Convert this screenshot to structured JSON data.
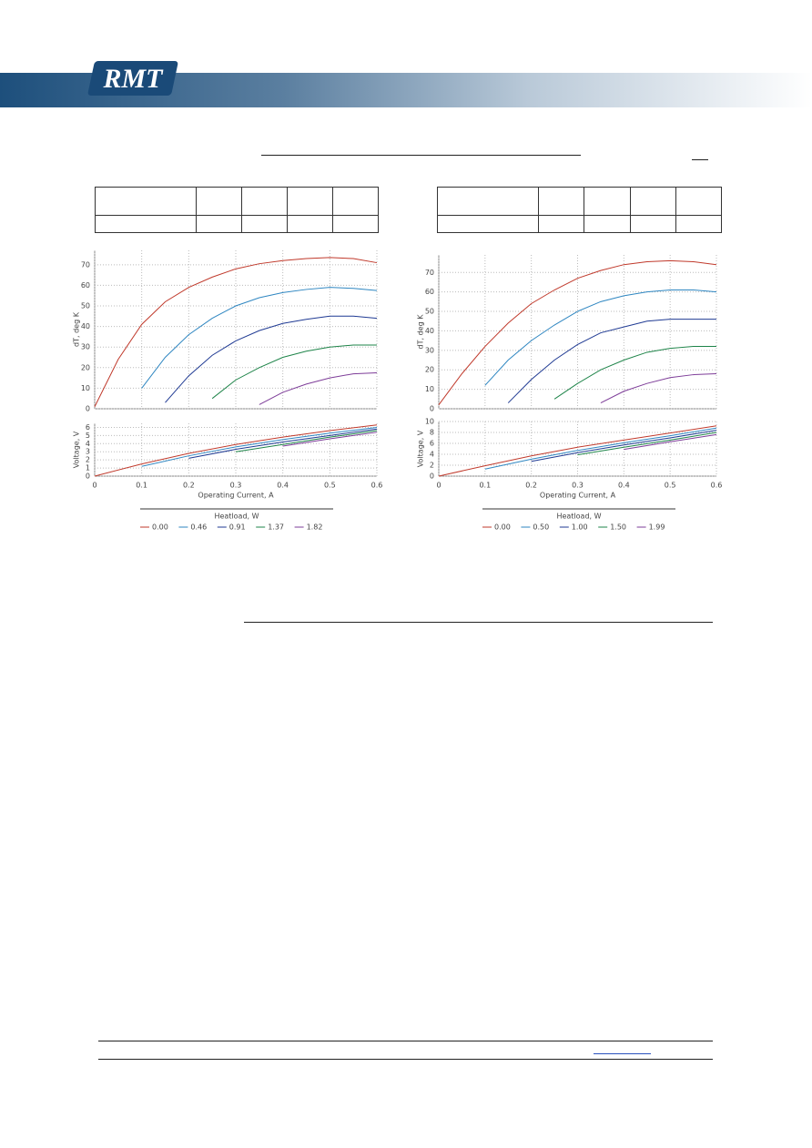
{
  "header": {
    "logo": "RMT"
  },
  "chart_data": [
    {
      "type": "line",
      "ylabel": "dT, deg K",
      "x": [
        0,
        0.05,
        0.1,
        0.15,
        0.2,
        0.25,
        0.3,
        0.35,
        0.4,
        0.45,
        0.5,
        0.55,
        0.6
      ],
      "xlim": [
        0,
        0.6
      ],
      "xticks": [
        0,
        0.1,
        0.2,
        0.3,
        0.4,
        0.5,
        0.6
      ],
      "ylim": [
        0,
        77
      ],
      "yticks": [
        0,
        10,
        20,
        30,
        40,
        50,
        60,
        70
      ],
      "grid": true,
      "series": [
        {
          "color": "#c0392b",
          "values": [
            1,
            24,
            41,
            52,
            59,
            64,
            68,
            70.5,
            72,
            73,
            73.5,
            73,
            71
          ]
        },
        {
          "color": "#2e86c1",
          "values": [
            null,
            null,
            10,
            25,
            36,
            44,
            50,
            54,
            56.5,
            58,
            59,
            58.5,
            57.5
          ]
        },
        {
          "color": "#1f3a93",
          "values": [
            null,
            null,
            null,
            3,
            16,
            26,
            33,
            38,
            41.5,
            43.5,
            45,
            45,
            44
          ]
        },
        {
          "color": "#1e8449",
          "values": [
            null,
            null,
            null,
            null,
            null,
            5,
            14,
            20,
            25,
            28,
            30,
            31,
            31
          ]
        },
        {
          "color": "#7d3c98",
          "values": [
            null,
            null,
            null,
            null,
            null,
            null,
            null,
            2,
            8,
            12,
            15,
            17,
            17.5
          ]
        }
      ]
    },
    {
      "type": "line",
      "ylabel": "Voltage, V",
      "xlabel": "Operating Current, A",
      "legend_title": "Heatload, W",
      "x": [
        0,
        0.1,
        0.2,
        0.3,
        0.4,
        0.5,
        0.6
      ],
      "xlim": [
        0,
        0.6
      ],
      "xticks": [
        0,
        0.1,
        0.2,
        0.3,
        0.4,
        0.5,
        0.6
      ],
      "ylim": [
        0,
        6.5
      ],
      "yticks": [
        0,
        1,
        2,
        3,
        4,
        5,
        6
      ],
      "grid": true,
      "series": [
        {
          "name": "0.00",
          "color": "#c0392b",
          "values": [
            0,
            1.5,
            2.8,
            3.9,
            4.8,
            5.6,
            6.3
          ]
        },
        {
          "name": "0.46",
          "color": "#2e86c1",
          "values": [
            null,
            1.2,
            2.5,
            3.6,
            4.5,
            5.3,
            6.0
          ]
        },
        {
          "name": "0.91",
          "color": "#1f3a93",
          "values": [
            null,
            null,
            2.2,
            3.3,
            4.2,
            5.0,
            5.8
          ]
        },
        {
          "name": "1.37",
          "color": "#1e8449",
          "values": [
            null,
            null,
            null,
            3.0,
            3.9,
            4.8,
            5.6
          ]
        },
        {
          "name": "1.82",
          "color": "#7d3c98",
          "values": [
            null,
            null,
            null,
            null,
            3.7,
            4.6,
            5.4
          ]
        }
      ]
    },
    {
      "type": "line",
      "ylabel": "dT, deg K",
      "x": [
        0,
        0.05,
        0.1,
        0.15,
        0.2,
        0.25,
        0.3,
        0.35,
        0.4,
        0.45,
        0.5,
        0.55,
        0.6
      ],
      "xlim": [
        0,
        0.6
      ],
      "xticks": [
        0,
        0.1,
        0.2,
        0.3,
        0.4,
        0.5,
        0.6
      ],
      "ylim": [
        0,
        79
      ],
      "yticks": [
        0,
        10,
        20,
        30,
        40,
        50,
        60,
        70
      ],
      "grid": true,
      "series": [
        {
          "color": "#c0392b",
          "values": [
            2,
            18,
            32,
            44,
            54,
            61,
            67,
            71,
            74,
            75.5,
            76,
            75.5,
            74
          ]
        },
        {
          "color": "#2e86c1",
          "values": [
            null,
            null,
            12,
            25,
            35,
            43,
            50,
            55,
            58,
            60,
            61,
            61,
            60
          ]
        },
        {
          "color": "#1f3a93",
          "values": [
            null,
            null,
            null,
            3,
            15,
            25,
            33,
            39,
            42,
            45,
            46,
            46,
            46
          ]
        },
        {
          "color": "#1e8449",
          "values": [
            null,
            null,
            null,
            null,
            null,
            5,
            13,
            20,
            25,
            29,
            31,
            32,
            32
          ]
        },
        {
          "color": "#7d3c98",
          "values": [
            null,
            null,
            null,
            null,
            null,
            null,
            null,
            3,
            9,
            13,
            16,
            17.5,
            18
          ]
        }
      ]
    },
    {
      "type": "line",
      "ylabel": "Voltage, V",
      "xlabel": "Operating Current, A",
      "legend_title": "Heatload, W",
      "x": [
        0,
        0.1,
        0.2,
        0.3,
        0.4,
        0.5,
        0.6
      ],
      "xlim": [
        0,
        0.6
      ],
      "xticks": [
        0,
        0.1,
        0.2,
        0.3,
        0.4,
        0.5,
        0.6
      ],
      "ylim": [
        0,
        10
      ],
      "yticks": [
        0,
        2,
        4,
        6,
        8,
        10
      ],
      "grid": true,
      "series": [
        {
          "name": "0.00",
          "color": "#c0392b",
          "values": [
            0,
            1.9,
            3.7,
            5.3,
            6.6,
            7.9,
            9.2
          ]
        },
        {
          "name": "0.50",
          "color": "#2e86c1",
          "values": [
            null,
            1.3,
            3.1,
            4.7,
            6.1,
            7.4,
            8.8
          ]
        },
        {
          "name": "1.00",
          "color": "#1f3a93",
          "values": [
            null,
            null,
            2.7,
            4.3,
            5.7,
            7.0,
            8.4
          ]
        },
        {
          "name": "1.50",
          "color": "#1e8449",
          "values": [
            null,
            null,
            null,
            3.9,
            5.3,
            6.6,
            8.0
          ]
        },
        {
          "name": "1.99",
          "color": "#7d3c98",
          "values": [
            null,
            null,
            null,
            null,
            4.9,
            6.3,
            7.6
          ]
        }
      ]
    }
  ]
}
